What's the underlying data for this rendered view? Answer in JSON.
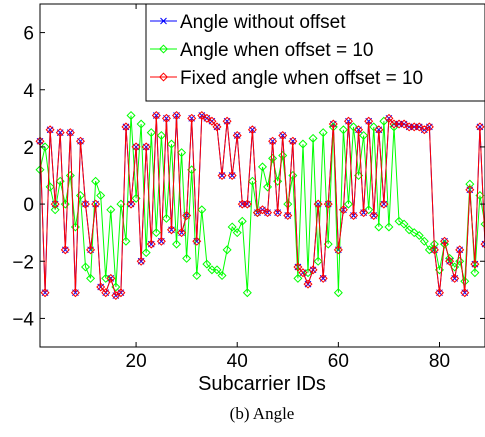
{
  "caption": "(b) Angle",
  "chart_data": {
    "type": "line",
    "title": "",
    "xlabel": "Subcarrier IDs",
    "ylabel": "",
    "xlim": [
      1,
      89
    ],
    "ylim": [
      -5,
      7
    ],
    "xticks": [
      20,
      40,
      60,
      80
    ],
    "yticks": [
      -4,
      -2,
      0,
      2,
      4,
      6
    ],
    "grid": false,
    "legend_position": "top-right",
    "x": [
      1,
      2,
      3,
      4,
      5,
      6,
      7,
      8,
      9,
      10,
      11,
      12,
      13,
      14,
      15,
      16,
      17,
      18,
      19,
      20,
      21,
      22,
      23,
      24,
      25,
      26,
      27,
      28,
      29,
      30,
      31,
      32,
      33,
      34,
      35,
      36,
      37,
      38,
      39,
      40,
      41,
      42,
      43,
      44,
      45,
      46,
      47,
      48,
      49,
      50,
      51,
      52,
      53,
      54,
      55,
      56,
      57,
      58,
      59,
      60,
      61,
      62,
      63,
      64,
      65,
      66,
      67,
      68,
      69,
      70,
      71,
      72,
      73,
      74,
      75,
      76,
      77,
      78,
      79,
      80,
      81,
      82,
      83,
      84,
      85,
      86,
      87,
      88,
      89
    ],
    "series": [
      {
        "name": "Angle without offset",
        "color": "#0000ff",
        "marker": "x",
        "values": [
          2.2,
          -3.1,
          2.6,
          0.0,
          2.5,
          -1.6,
          2.5,
          -3.1,
          2.2,
          0.0,
          -1.6,
          0.0,
          -2.9,
          -3.1,
          -2.6,
          -3.2,
          -3.1,
          2.7,
          0.0,
          2.0,
          -2.0,
          2.0,
          -1.4,
          3.1,
          -1.3,
          3.0,
          -0.9,
          3.1,
          -1.0,
          -0.4,
          3.0,
          -1.3,
          3.1,
          3.0,
          2.9,
          2.7,
          1.0,
          2.9,
          1.0,
          2.4,
          0.0,
          0.0,
          2.6,
          -0.3,
          -0.2,
          -0.3,
          2.2,
          -0.3,
          2.4,
          -0.4,
          2.2,
          -2.2,
          -2.4,
          -2.8,
          -2.3,
          0.0,
          -2.6,
          0.0,
          2.8,
          -1.6,
          -0.2,
          2.9,
          -0.4,
          2.6,
          -0.3,
          2.9,
          -0.4,
          2.6,
          0.0,
          3.0,
          2.8,
          2.8,
          2.8,
          2.7,
          2.7,
          2.7,
          2.6,
          2.7,
          -1.6,
          -3.1,
          -1.3,
          -2.0,
          -2.6,
          -1.6,
          -3.1,
          0.5,
          -2.1,
          2.7,
          -1.4
        ]
      },
      {
        "name": "Angle when offset = 10",
        "color": "#00ff00",
        "marker": "diamond",
        "values": [
          1.2,
          2.0,
          0.6,
          -0.2,
          0.8,
          0.0,
          1.0,
          -0.8,
          0.3,
          -2.2,
          -2.6,
          0.8,
          0.3,
          -2.6,
          -0.2,
          -2.9,
          0.0,
          -1.3,
          3.1,
          0.2,
          2.8,
          -1.7,
          2.5,
          -1.0,
          2.4,
          -0.5,
          2.1,
          -1.4,
          1.8,
          -1.9,
          1.2,
          -2.5,
          -0.2,
          -2.1,
          -2.3,
          -2.3,
          -2.5,
          -1.6,
          -0.8,
          -1.0,
          -0.6,
          -3.1,
          0.8,
          -0.3,
          1.3,
          0.6,
          1.6,
          0.8,
          1.7,
          0.0,
          1.0,
          -2.6,
          2.1,
          -2.4,
          2.3,
          -2.0,
          2.5,
          -1.4,
          2.7,
          -3.1,
          2.6,
          0.0,
          2.7,
          1.0,
          2.4,
          -0.2,
          2.7,
          -0.8,
          2.9,
          -0.8,
          2.7,
          -0.6,
          -0.7,
          -0.9,
          -1.0,
          -1.1,
          -1.3,
          -1.6,
          -1.4,
          -2.3,
          -1.4,
          -1.9,
          -2.2,
          -2.0,
          -2.7,
          0.7,
          -2.4,
          0.3,
          -0.7
        ]
      },
      {
        "name": "Fixed angle when offset = 10",
        "color": "#ff0000",
        "marker": "diamond",
        "values": [
          2.2,
          -3.1,
          2.6,
          0.0,
          2.5,
          -1.6,
          2.5,
          -3.1,
          2.2,
          0.0,
          -1.6,
          0.0,
          -2.9,
          -3.1,
          -2.6,
          -3.2,
          -3.1,
          2.7,
          0.0,
          2.0,
          -2.0,
          2.0,
          -1.4,
          3.1,
          -1.3,
          3.0,
          -0.9,
          3.1,
          -1.0,
          -0.4,
          3.0,
          -1.3,
          3.1,
          3.0,
          2.9,
          2.7,
          1.0,
          2.9,
          1.0,
          2.4,
          0.0,
          0.0,
          2.6,
          -0.3,
          -0.2,
          -0.3,
          2.2,
          -0.3,
          2.4,
          -0.4,
          2.2,
          -2.2,
          -2.4,
          -2.8,
          -2.3,
          0.0,
          -2.6,
          0.0,
          2.8,
          -1.6,
          -0.2,
          2.9,
          -0.4,
          2.6,
          -0.3,
          2.9,
          -0.4,
          2.6,
          0.0,
          3.0,
          2.8,
          2.8,
          2.8,
          2.7,
          2.7,
          2.7,
          2.6,
          2.7,
          -1.6,
          -3.1,
          -1.3,
          -2.0,
          -2.6,
          -1.6,
          -3.1,
          0.5,
          -2.1,
          2.7,
          -1.4
        ]
      }
    ]
  }
}
